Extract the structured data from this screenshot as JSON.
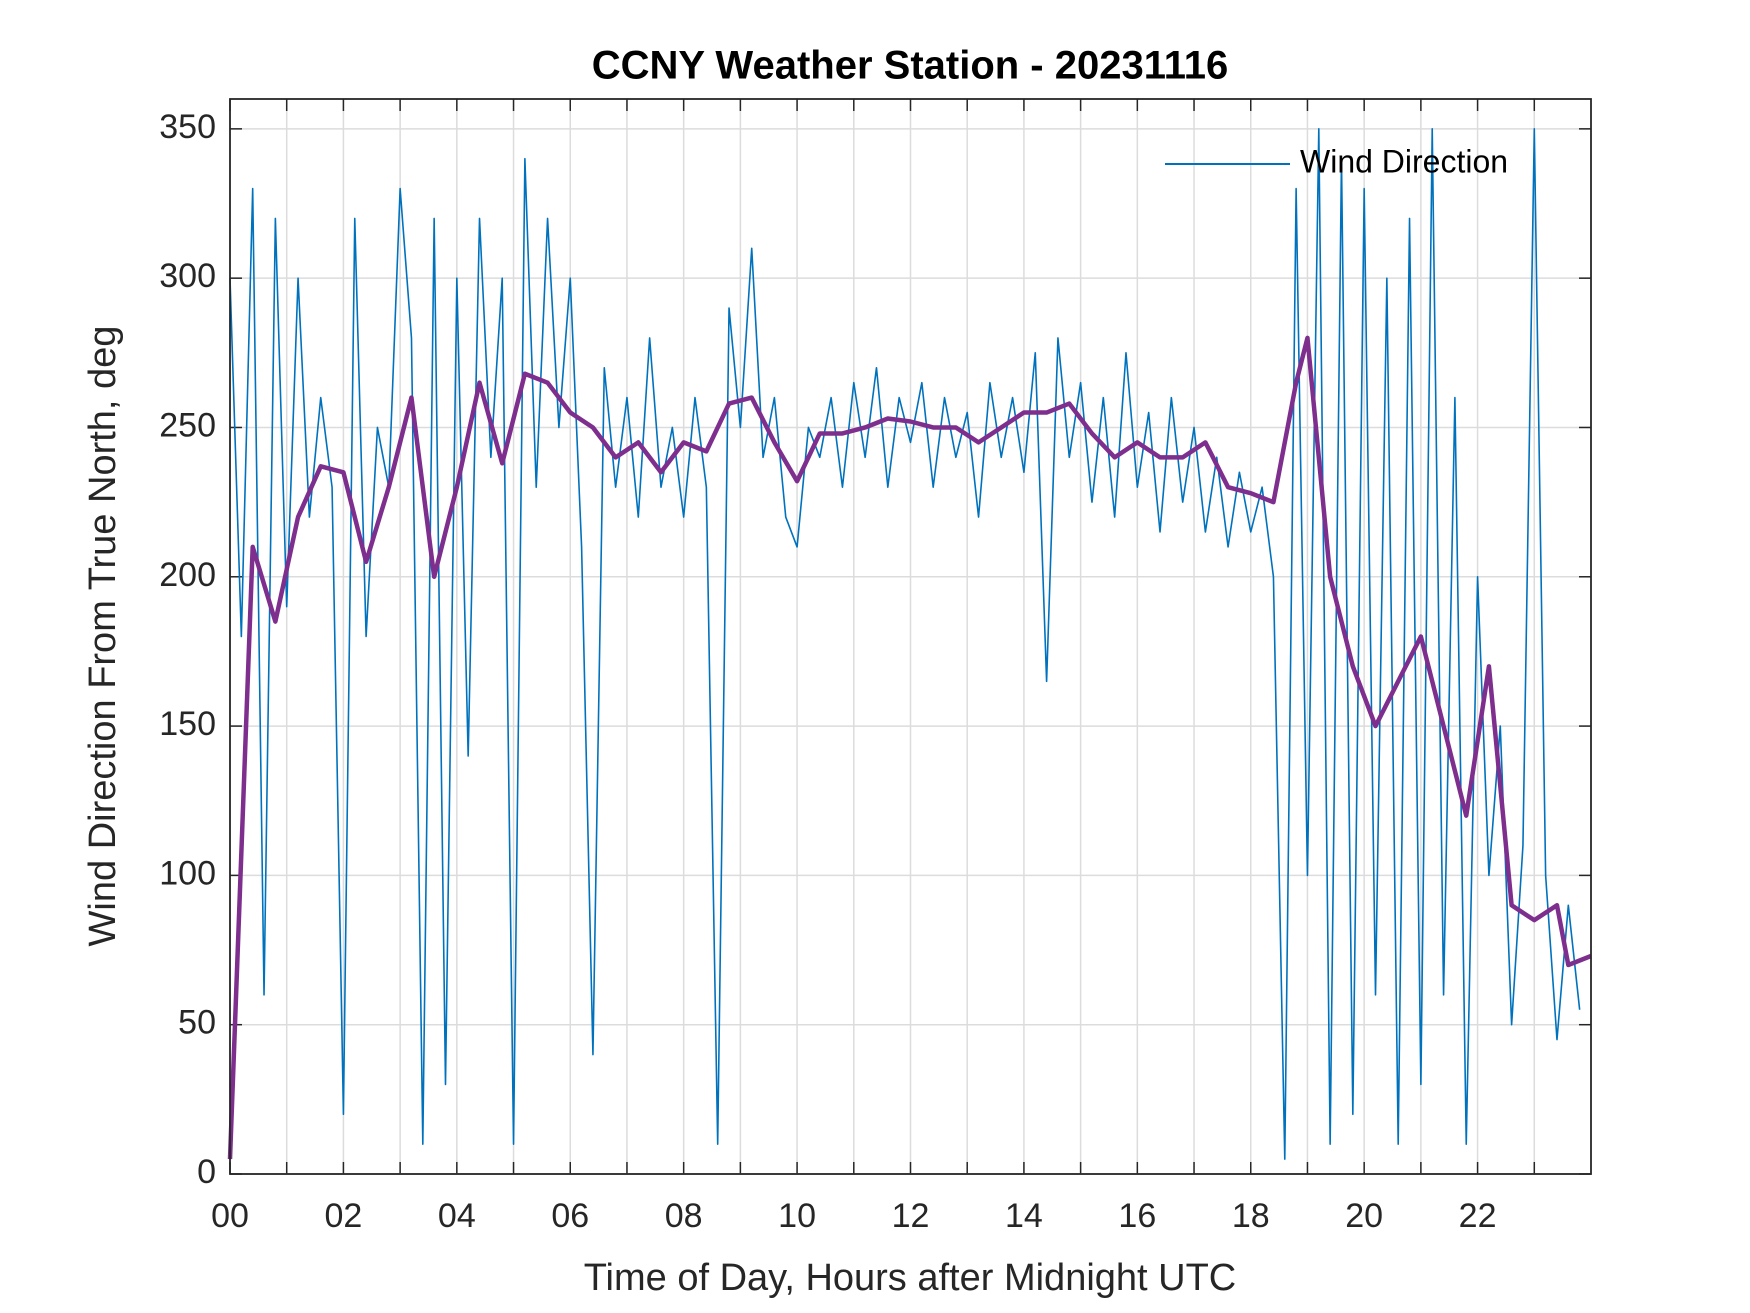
{
  "chart_data": {
    "type": "line",
    "title": "CCNY Weather Station - 20231116",
    "xlabel": "Time of Day, Hours after Midnight UTC",
    "ylabel": "Wind Direction From True North, deg",
    "xlim": [
      0,
      24
    ],
    "ylim": [
      0,
      360
    ],
    "xticks": [
      {
        "value": 0,
        "label": "00"
      },
      {
        "value": 2,
        "label": "02"
      },
      {
        "value": 4,
        "label": "04"
      },
      {
        "value": 6,
        "label": "06"
      },
      {
        "value": 8,
        "label": "08"
      },
      {
        "value": 10,
        "label": "10"
      },
      {
        "value": 12,
        "label": "12"
      },
      {
        "value": 14,
        "label": "14"
      },
      {
        "value": 16,
        "label": "16"
      },
      {
        "value": 18,
        "label": "18"
      },
      {
        "value": 20,
        "label": "20"
      },
      {
        "value": 22,
        "label": "22"
      }
    ],
    "xminorticks": [
      1,
      3,
      5,
      7,
      9,
      11,
      13,
      15,
      17,
      19,
      21,
      23
    ],
    "yticks": [
      0,
      50,
      100,
      150,
      200,
      250,
      300,
      350
    ],
    "grid": true,
    "legend": "upper right",
    "series": [
      {
        "name": "Wind Direction",
        "color": "#0072BD",
        "x": [
          0,
          0.2,
          0.4,
          0.6,
          0.8,
          1,
          1.2,
          1.4,
          1.6,
          1.8,
          2,
          2.2,
          2.4,
          2.6,
          2.8,
          3,
          3.2,
          3.4,
          3.6,
          3.8,
          4,
          4.2,
          4.4,
          4.6,
          4.8,
          5,
          5.2,
          5.4,
          5.6,
          5.8,
          6,
          6.2,
          6.4,
          6.6,
          6.8,
          7,
          7.2,
          7.4,
          7.6,
          7.8,
          8,
          8.2,
          8.4,
          8.6,
          8.8,
          9,
          9.2,
          9.4,
          9.6,
          9.8,
          10,
          10.2,
          10.4,
          10.6,
          10.8,
          11,
          11.2,
          11.4,
          11.6,
          11.8,
          12,
          12.2,
          12.4,
          12.6,
          12.8,
          13,
          13.2,
          13.4,
          13.6,
          13.8,
          14,
          14.2,
          14.4,
          14.6,
          14.8,
          15,
          15.2,
          15.4,
          15.6,
          15.8,
          16,
          16.2,
          16.4,
          16.6,
          16.8,
          17,
          17.2,
          17.4,
          17.6,
          17.8,
          18,
          18.2,
          18.4,
          18.6,
          18.8,
          19,
          19.2,
          19.4,
          19.6,
          19.8,
          20,
          20.2,
          20.4,
          20.6,
          20.8,
          21,
          21.2,
          21.4,
          21.6,
          21.8,
          22,
          22.2,
          22.4,
          22.6,
          22.8,
          23,
          23.2,
          23.4,
          23.6,
          23.8
        ],
        "values": [
          300,
          180,
          330,
          60,
          320,
          190,
          300,
          220,
          260,
          230,
          20,
          320,
          180,
          250,
          230,
          330,
          280,
          10,
          320,
          30,
          300,
          140,
          320,
          240,
          300,
          10,
          340,
          230,
          320,
          250,
          300,
          210,
          40,
          270,
          230,
          260,
          220,
          280,
          230,
          250,
          220,
          260,
          230,
          10,
          290,
          250,
          310,
          240,
          260,
          220,
          210,
          250,
          240,
          260,
          230,
          265,
          240,
          270,
          230,
          260,
          245,
          265,
          230,
          260,
          240,
          255,
          220,
          265,
          240,
          260,
          235,
          275,
          165,
          280,
          240,
          265,
          225,
          260,
          220,
          275,
          230,
          255,
          215,
          260,
          225,
          250,
          215,
          240,
          210,
          235,
          215,
          230,
          200,
          5,
          330,
          100,
          350,
          10,
          340,
          20,
          330,
          60,
          300,
          10,
          320,
          30,
          350,
          60,
          260,
          10,
          200,
          100,
          150,
          50,
          110,
          350,
          100,
          45,
          90,
          55
        ]
      },
      {
        "color": "#7E2F8E",
        "x": [
          0,
          0.4,
          0.8,
          1.2,
          1.6,
          2,
          2.4,
          2.8,
          3.2,
          3.6,
          4,
          4.4,
          4.8,
          5.2,
          5.6,
          6,
          6.4,
          6.8,
          7.2,
          7.6,
          8,
          8.4,
          8.8,
          9.2,
          9.6,
          10,
          10.4,
          10.8,
          11.2,
          11.6,
          12,
          12.4,
          12.8,
          13.2,
          13.6,
          14,
          14.4,
          14.8,
          15.2,
          15.6,
          16,
          16.4,
          16.8,
          17.2,
          17.6,
          18,
          18.4,
          18.8,
          19,
          19.4,
          19.8,
          20.2,
          20.6,
          21,
          21.4,
          21.8,
          22.2,
          22.6,
          23,
          23.4,
          23.6,
          24
        ],
        "values": [
          5,
          210,
          185,
          220,
          237,
          235,
          205,
          230,
          260,
          200,
          230,
          265,
          238,
          268,
          265,
          255,
          250,
          240,
          245,
          235,
          245,
          242,
          258,
          260,
          245,
          232,
          248,
          248,
          250,
          253,
          252,
          250,
          250,
          245,
          250,
          255,
          255,
          258,
          248,
          240,
          245,
          240,
          240,
          245,
          230,
          228,
          225,
          265,
          280,
          200,
          170,
          150,
          165,
          180,
          150,
          120,
          170,
          90,
          85,
          90,
          70,
          73
        ]
      }
    ]
  }
}
